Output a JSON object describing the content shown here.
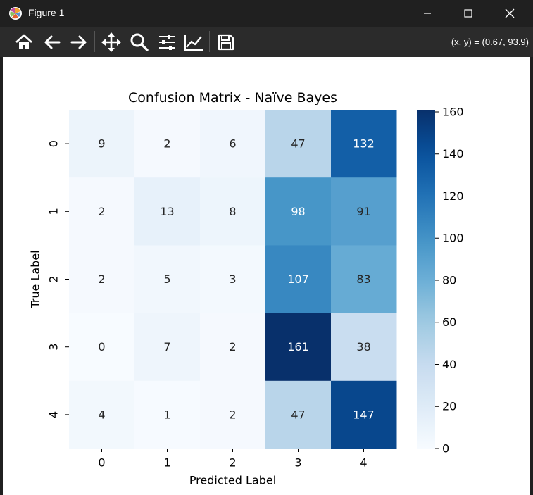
{
  "window": {
    "title": "Figure 1",
    "controls": [
      "minimize",
      "maximize",
      "close"
    ]
  },
  "toolbar": {
    "tools": [
      {
        "name": "home",
        "icon": "home-icon"
      },
      {
        "name": "back",
        "icon": "arrow-left-icon"
      },
      {
        "name": "forward",
        "icon": "arrow-right-icon"
      },
      {
        "name": "pan",
        "icon": "move-icon"
      },
      {
        "name": "zoom",
        "icon": "search-icon"
      },
      {
        "name": "configure-subplots",
        "icon": "sliders-icon"
      },
      {
        "name": "edit-axis",
        "icon": "line-chart-icon"
      },
      {
        "name": "save",
        "icon": "save-icon"
      }
    ],
    "coords": "(x, y) = (0.67, 93.9)"
  },
  "chart_data": {
    "type": "heatmap",
    "title": "Confusion Matrix - Naïve Bayes",
    "xlabel": "Predicted Label",
    "ylabel": "True Label",
    "x_categories": [
      "0",
      "1",
      "2",
      "3",
      "4"
    ],
    "y_categories": [
      "0",
      "1",
      "2",
      "3",
      "4"
    ],
    "values": [
      [
        9,
        2,
        6,
        47,
        132
      ],
      [
        2,
        13,
        8,
        98,
        91
      ],
      [
        2,
        5,
        3,
        107,
        83
      ],
      [
        0,
        7,
        2,
        161,
        38
      ],
      [
        4,
        1,
        2,
        47,
        147
      ]
    ],
    "colormap": "Blues",
    "vmin": 0,
    "vmax": 161,
    "colorbar_ticks": [
      0,
      20,
      40,
      60,
      80,
      100,
      120,
      140,
      160
    ],
    "annotations": true
  }
}
